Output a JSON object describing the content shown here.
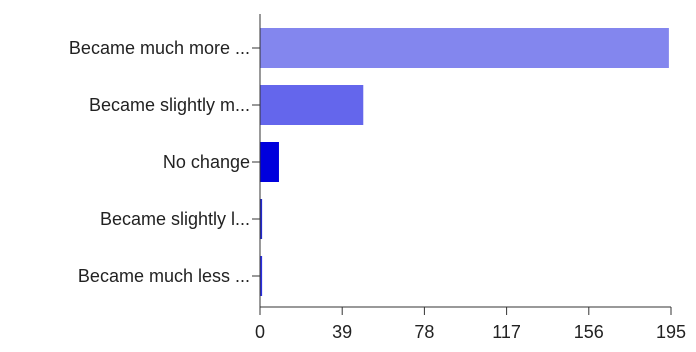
{
  "chart_data": {
    "type": "bar",
    "orientation": "horizontal",
    "categories": [
      "Became much more ...",
      "Became slightly m...",
      "No change",
      "Became slightly l...",
      "Became much less ..."
    ],
    "values": [
      194,
      49,
      9,
      1,
      1
    ],
    "colors": [
      "#8386ee",
      "#6466ec",
      "#0000dd",
      "#2228cc",
      "#2a2ee0"
    ],
    "xticks": [
      0,
      39,
      78,
      117,
      156,
      195
    ],
    "xlim": [
      0,
      195
    ],
    "title": "",
    "xlabel": "",
    "ylabel": "",
    "grid": false,
    "legend": "none"
  }
}
